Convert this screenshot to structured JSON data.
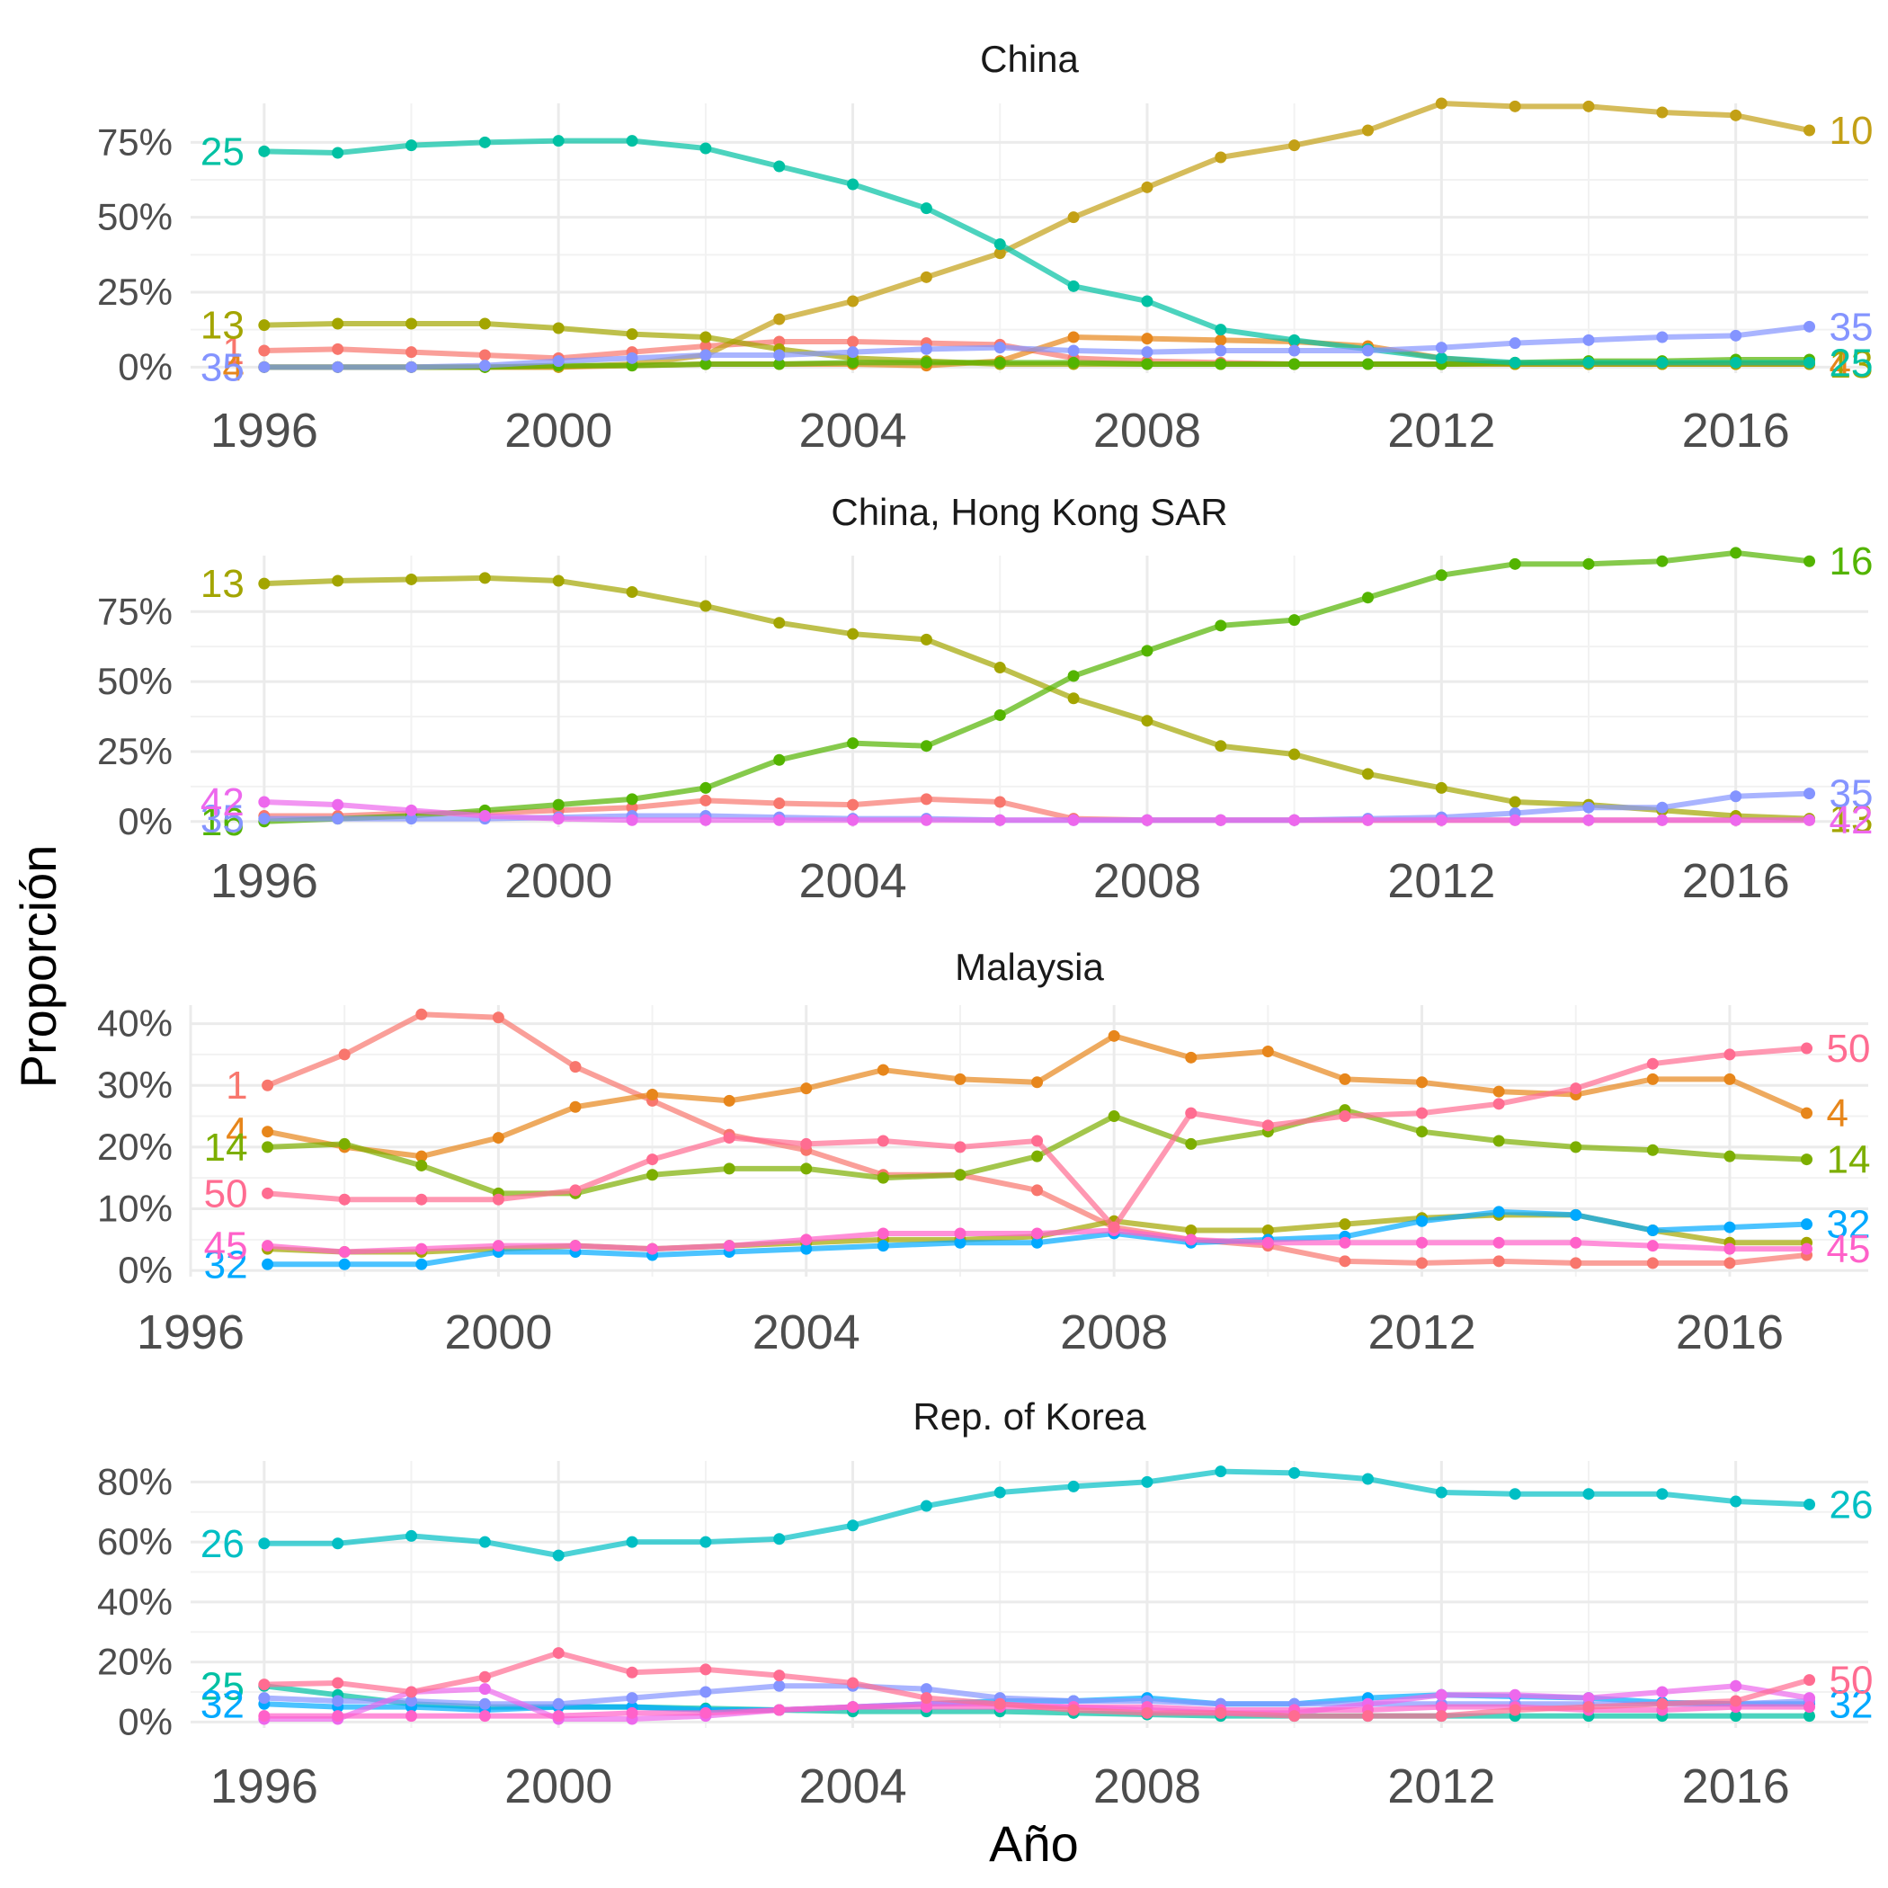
{
  "chart_data": {
    "type": "line",
    "xlabel": "Año",
    "ylabel": "Proporción",
    "grid": true,
    "legend": "none",
    "colors": {
      "1": "#F8766D",
      "4": "#E7861B",
      "10": "#C3A016",
      "13": "#A3A500",
      "14": "#7CAE00",
      "16": "#53B400",
      "25": "#00C1A3",
      "26": "#00BFC4",
      "32": "#00A9FF",
      "35": "#8494FF",
      "42": "#ED68ED",
      "45": "#FF61C9",
      "50": "#FF6C91"
    },
    "panels": [
      {
        "title": "China",
        "x_ticks": [
          1996,
          2000,
          2004,
          2008,
          2012,
          2016
        ],
        "y_ticks": [
          0,
          0.25,
          0.5,
          0.75
        ],
        "y_tick_labels": [
          "0%",
          "25%",
          "50%",
          "75%"
        ],
        "xlim": [
          1995.0,
          2017.8
        ],
        "ylim": [
          -0.02,
          0.88
        ],
        "x": [
          1996,
          1997,
          1998,
          1999,
          2000,
          2001,
          2002,
          2003,
          2004,
          2005,
          2006,
          2007,
          2008,
          2009,
          2010,
          2011,
          2012,
          2013,
          2014,
          2015,
          2016,
          2017
        ],
        "series": [
          {
            "name": "1",
            "start_label": "1",
            "end_label": "",
            "values": [
              0.055,
              0.06,
              0.05,
              0.04,
              0.03,
              0.05,
              0.07,
              0.085,
              0.085,
              0.08,
              0.075,
              0.03,
              0.02,
              0.015,
              0.01,
              0.01,
              0.01,
              0.01,
              0.01,
              0.01,
              0.01,
              0.01
            ]
          },
          {
            "name": "4",
            "start_label": "4",
            "end_label": "4",
            "values": [
              0.0,
              0.0,
              0.0,
              0.0,
              0.0,
              0.005,
              0.01,
              0.01,
              0.01,
              0.005,
              0.02,
              0.1,
              0.095,
              0.09,
              0.085,
              0.07,
              0.03,
              0.01,
              0.01,
              0.01,
              0.01,
              0.01
            ]
          },
          {
            "name": "10",
            "start_label": "",
            "end_label": "10",
            "values": [
              0.0,
              0.0,
              0.0,
              0.0,
              0.0,
              0.01,
              0.04,
              0.16,
              0.22,
              0.3,
              0.38,
              0.5,
              0.6,
              0.7,
              0.74,
              0.79,
              0.88,
              0.87,
              0.87,
              0.85,
              0.84,
              0.79
            ]
          },
          {
            "name": "13",
            "start_label": "13",
            "end_label": "13",
            "values": [
              0.14,
              0.145,
              0.145,
              0.145,
              0.13,
              0.11,
              0.1,
              0.06,
              0.03,
              0.02,
              0.01,
              0.01,
              0.01,
              0.01,
              0.01,
              0.01,
              0.01,
              0.01,
              0.01,
              0.01,
              0.01,
              0.01
            ]
          },
          {
            "name": "16",
            "start_label": "",
            "end_label": "",
            "values": [
              0.0,
              0.0,
              0.0,
              0.0,
              0.005,
              0.005,
              0.01,
              0.01,
              0.015,
              0.015,
              0.015,
              0.015,
              0.01,
              0.01,
              0.01,
              0.01,
              0.01,
              0.015,
              0.02,
              0.02,
              0.025,
              0.025
            ]
          },
          {
            "name": "25",
            "start_label": "25",
            "end_label": "25",
            "values": [
              0.72,
              0.715,
              0.74,
              0.75,
              0.755,
              0.755,
              0.73,
              0.67,
              0.61,
              0.53,
              0.41,
              0.27,
              0.22,
              0.125,
              0.09,
              0.06,
              0.03,
              0.015,
              0.015,
              0.015,
              0.015,
              0.015
            ]
          },
          {
            "name": "35",
            "start_label": "35",
            "end_label": "35",
            "values": [
              0.0,
              0.0,
              0.0,
              0.005,
              0.02,
              0.03,
              0.04,
              0.04,
              0.05,
              0.06,
              0.065,
              0.055,
              0.05,
              0.055,
              0.055,
              0.055,
              0.065,
              0.08,
              0.09,
              0.1,
              0.105,
              0.135
            ]
          }
        ]
      },
      {
        "title": "China, Hong Kong SAR",
        "x_ticks": [
          1996,
          2000,
          2004,
          2008,
          2012,
          2016
        ],
        "y_ticks": [
          0,
          0.25,
          0.5,
          0.75
        ],
        "y_tick_labels": [
          "0%",
          "25%",
          "50%",
          "75%"
        ],
        "xlim": [
          1995.0,
          2017.8
        ],
        "ylim": [
          -0.02,
          0.95
        ],
        "x": [
          1996,
          1997,
          1998,
          1999,
          2000,
          2001,
          2002,
          2003,
          2004,
          2005,
          2006,
          2007,
          2008,
          2009,
          2010,
          2011,
          2012,
          2013,
          2014,
          2015,
          2016,
          2017
        ],
        "series": [
          {
            "name": "1",
            "start_label": "",
            "end_label": "",
            "values": [
              0.02,
              0.02,
              0.03,
              0.03,
              0.04,
              0.05,
              0.075,
              0.065,
              0.06,
              0.08,
              0.07,
              0.01,
              0.005,
              0.005,
              0.005,
              0.005,
              0.005,
              0.005,
              0.005,
              0.005,
              0.005,
              0.005
            ]
          },
          {
            "name": "13",
            "start_label": "13",
            "end_label": "13",
            "values": [
              0.85,
              0.86,
              0.865,
              0.87,
              0.86,
              0.82,
              0.77,
              0.71,
              0.67,
              0.65,
              0.55,
              0.44,
              0.36,
              0.27,
              0.24,
              0.17,
              0.12,
              0.07,
              0.06,
              0.04,
              0.02,
              0.01
            ]
          },
          {
            "name": "16",
            "start_label": "16",
            "end_label": "16",
            "values": [
              0.0,
              0.01,
              0.02,
              0.04,
              0.06,
              0.08,
              0.12,
              0.22,
              0.28,
              0.27,
              0.38,
              0.52,
              0.61,
              0.7,
              0.72,
              0.8,
              0.88,
              0.92,
              0.92,
              0.93,
              0.96,
              0.93
            ]
          },
          {
            "name": "35",
            "start_label": "35",
            "end_label": "35",
            "values": [
              0.01,
              0.01,
              0.01,
              0.01,
              0.015,
              0.02,
              0.02,
              0.015,
              0.01,
              0.01,
              0.005,
              0.005,
              0.005,
              0.005,
              0.005,
              0.01,
              0.015,
              0.03,
              0.05,
              0.05,
              0.09,
              0.1
            ]
          },
          {
            "name": "42",
            "start_label": "42",
            "end_label": "42",
            "values": [
              0.07,
              0.06,
              0.04,
              0.02,
              0.01,
              0.005,
              0.005,
              0.005,
              0.005,
              0.005,
              0.005,
              0.005,
              0.005,
              0.005,
              0.005,
              0.005,
              0.005,
              0.005,
              0.005,
              0.005,
              0.005,
              0.005
            ]
          }
        ]
      },
      {
        "title": "Malaysia",
        "x_ticks": [
          1996,
          2000,
          2004,
          2008,
          2012,
          2016
        ],
        "y_ticks": [
          0,
          0.1,
          0.2,
          0.3,
          0.4
        ],
        "y_tick_labels": [
          "0%",
          "10%",
          "20%",
          "30%",
          "40%"
        ],
        "xlim": [
          1996.0,
          2017.8
        ],
        "ylim": [
          -0.01,
          0.43
        ],
        "x": [
          1997,
          1998,
          1999,
          2000,
          2001,
          2002,
          2003,
          2004,
          2005,
          2006,
          2007,
          2008,
          2009,
          2010,
          2011,
          2012,
          2013,
          2014,
          2015,
          2016,
          2017
        ],
        "series": [
          {
            "name": "1",
            "start_label": "1",
            "end_label": "",
            "values": [
              0.3,
              0.35,
              0.415,
              0.41,
              0.33,
              0.275,
              0.22,
              0.195,
              0.155,
              0.155,
              0.13,
              0.07,
              0.05,
              0.04,
              0.015,
              0.012,
              0.015,
              0.012,
              0.012,
              0.012,
              0.025
            ]
          },
          {
            "name": "4",
            "start_label": "4",
            "end_label": "4",
            "values": [
              0.225,
              0.2,
              0.185,
              0.215,
              0.265,
              0.285,
              0.275,
              0.295,
              0.325,
              0.31,
              0.305,
              0.38,
              0.345,
              0.355,
              0.31,
              0.305,
              0.29,
              0.285,
              0.31,
              0.31,
              0.255
            ]
          },
          {
            "name": "13",
            "start_label": "",
            "end_label": "",
            "values": [
              0.035,
              0.03,
              0.03,
              0.035,
              0.04,
              0.035,
              0.04,
              0.045,
              0.05,
              0.05,
              0.055,
              0.08,
              0.065,
              0.065,
              0.075,
              0.085,
              0.09,
              0.09,
              0.065,
              0.045,
              0.045
            ]
          },
          {
            "name": "14",
            "start_label": "14",
            "end_label": "14",
            "values": [
              0.2,
              0.205,
              0.17,
              0.125,
              0.125,
              0.155,
              0.165,
              0.165,
              0.15,
              0.155,
              0.185,
              0.25,
              0.205,
              0.225,
              0.26,
              0.225,
              0.21,
              0.2,
              0.195,
              0.185,
              0.18
            ]
          },
          {
            "name": "32",
            "start_label": "32",
            "end_label": "32",
            "values": [
              0.01,
              0.01,
              0.01,
              0.03,
              0.03,
              0.025,
              0.03,
              0.035,
              0.04,
              0.045,
              0.045,
              0.06,
              0.045,
              0.05,
              0.055,
              0.08,
              0.095,
              0.09,
              0.065,
              0.07,
              0.075
            ]
          },
          {
            "name": "45",
            "start_label": "45",
            "end_label": "45",
            "values": [
              0.04,
              0.03,
              0.035,
              0.04,
              0.04,
              0.035,
              0.04,
              0.05,
              0.06,
              0.06,
              0.06,
              0.065,
              0.05,
              0.045,
              0.045,
              0.045,
              0.045,
              0.045,
              0.04,
              0.035,
              0.035
            ]
          },
          {
            "name": "50",
            "start_label": "50",
            "end_label": "50",
            "values": [
              0.125,
              0.115,
              0.115,
              0.115,
              0.13,
              0.18,
              0.215,
              0.205,
              0.21,
              0.2,
              0.21,
              0.07,
              0.255,
              0.235,
              0.25,
              0.255,
              0.27,
              0.295,
              0.335,
              0.35,
              0.36
            ]
          }
        ]
      },
      {
        "title": "Rep. of Korea",
        "x_ticks": [
          1996,
          2000,
          2004,
          2008,
          2012,
          2016
        ],
        "y_ticks": [
          0,
          0.2,
          0.4,
          0.6,
          0.8
        ],
        "y_tick_labels": [
          "0%",
          "20%",
          "40%",
          "60%",
          "80%"
        ],
        "xlim": [
          1995.0,
          2017.8
        ],
        "ylim": [
          -0.02,
          0.87
        ],
        "x": [
          1996,
          1997,
          1998,
          1999,
          2000,
          2001,
          2002,
          2003,
          2004,
          2005,
          2006,
          2007,
          2008,
          2009,
          2010,
          2011,
          2012,
          2013,
          2014,
          2015,
          2016,
          2017
        ],
        "series": [
          {
            "name": "25",
            "start_label": "25",
            "end_label": "",
            "values": [
              0.12,
              0.09,
              0.06,
              0.05,
              0.05,
              0.05,
              0.045,
              0.04,
              0.035,
              0.035,
              0.035,
              0.03,
              0.025,
              0.02,
              0.02,
              0.02,
              0.02,
              0.02,
              0.02,
              0.02,
              0.02,
              0.02
            ]
          },
          {
            "name": "26",
            "start_label": "26",
            "end_label": "26",
            "values": [
              0.595,
              0.595,
              0.62,
              0.6,
              0.555,
              0.6,
              0.6,
              0.61,
              0.655,
              0.72,
              0.765,
              0.785,
              0.8,
              0.835,
              0.83,
              0.81,
              0.765,
              0.76,
              0.76,
              0.76,
              0.735,
              0.725
            ]
          },
          {
            "name": "32",
            "start_label": "32",
            "end_label": "32",
            "values": [
              0.06,
              0.05,
              0.05,
              0.04,
              0.05,
              0.05,
              0.04,
              0.04,
              0.05,
              0.06,
              0.07,
              0.07,
              0.08,
              0.06,
              0.06,
              0.08,
              0.09,
              0.085,
              0.08,
              0.065,
              0.06,
              0.06
            ]
          },
          {
            "name": "35",
            "start_label": "",
            "end_label": "",
            "values": [
              0.08,
              0.07,
              0.07,
              0.06,
              0.06,
              0.08,
              0.1,
              0.12,
              0.12,
              0.11,
              0.08,
              0.07,
              0.07,
              0.06,
              0.06,
              0.06,
              0.06,
              0.06,
              0.06,
              0.06,
              0.06,
              0.07
            ]
          },
          {
            "name": "42",
            "start_label": "",
            "end_label": "",
            "values": [
              0.01,
              0.01,
              0.1,
              0.11,
              0.01,
              0.01,
              0.02,
              0.04,
              0.05,
              0.06,
              0.06,
              0.05,
              0.04,
              0.03,
              0.03,
              0.06,
              0.09,
              0.09,
              0.08,
              0.1,
              0.12,
              0.08
            ]
          },
          {
            "name": "45",
            "start_label": "",
            "end_label": "",
            "values": [
              0.02,
              0.02,
              0.02,
              0.02,
              0.02,
              0.03,
              0.03,
              0.04,
              0.05,
              0.05,
              0.05,
              0.05,
              0.05,
              0.04,
              0.04,
              0.04,
              0.05,
              0.05,
              0.04,
              0.04,
              0.05,
              0.05
            ]
          },
          {
            "name": "50",
            "start_label": "",
            "end_label": "50",
            "values": [
              0.125,
              0.13,
              0.1,
              0.15,
              0.23,
              0.165,
              0.175,
              0.155,
              0.13,
              0.08,
              0.06,
              0.04,
              0.03,
              0.03,
              0.02,
              0.02,
              0.02,
              0.04,
              0.05,
              0.06,
              0.07,
              0.14
            ]
          }
        ]
      }
    ]
  }
}
